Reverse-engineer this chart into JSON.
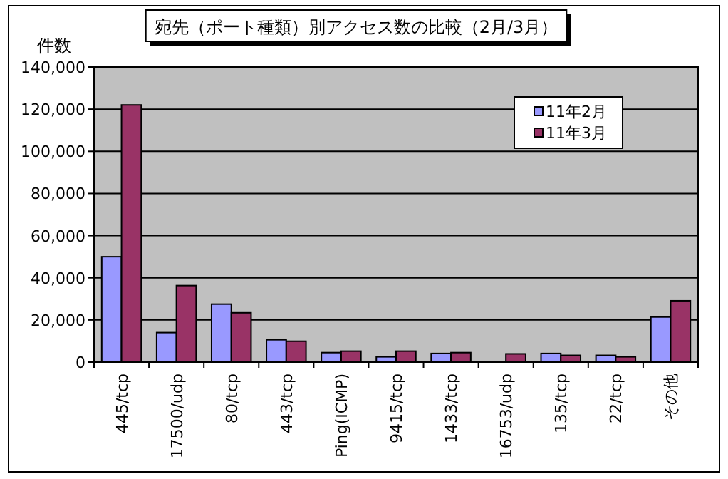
{
  "chart_data": {
    "type": "bar",
    "title": "宛先（ポート種類）別アクセス数の比較（2月/3月）",
    "ylabel": "件数",
    "categories": [
      "445/tcp",
      "17500/udp",
      "80/tcp",
      "443/tcp",
      "Ping(ICMP)",
      "9415/tcp",
      "1433/tcp",
      "16753/udp",
      "135/tcp",
      "22/tcp",
      "その他"
    ],
    "series": [
      {
        "name": "11年2月",
        "color": "#9999ff",
        "values": [
          50000,
          14000,
          27500,
          10600,
          4500,
          2500,
          4100,
          null,
          4100,
          3200,
          21400
        ]
      },
      {
        "name": "11年3月",
        "color": "#993366",
        "values": [
          122000,
          36300,
          23400,
          9900,
          5200,
          5200,
          4500,
          3900,
          3200,
          2500,
          29100
        ]
      }
    ],
    "ylim": [
      0,
      140000
    ],
    "yticks": [
      {
        "value": 0,
        "label": "0"
      },
      {
        "value": 20000,
        "label": "20,000"
      },
      {
        "value": 40000,
        "label": "40,000"
      },
      {
        "value": 60000,
        "label": "60,000"
      },
      {
        "value": 80000,
        "label": "80,000"
      },
      {
        "value": 100000,
        "label": "100,000"
      },
      {
        "value": 120000,
        "label": "120,000"
      },
      {
        "value": 140000,
        "label": "140,000"
      }
    ],
    "grid": "y",
    "legend": "top right"
  }
}
